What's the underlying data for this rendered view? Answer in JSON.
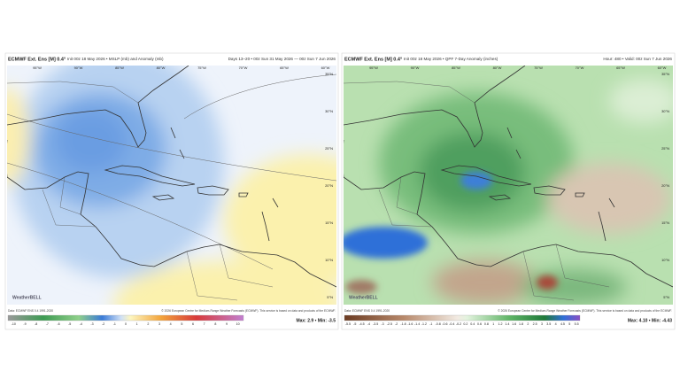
{
  "panels": [
    {
      "title": "ECMWF Ext. Ens [M] 0.4°",
      "subtitle": "Init 00z 18 May 2026 • MSLP (mb) and Anomaly (mb)",
      "valid": "Days 13–20 • 00z Sun 31 May 2026 — 00z Sun 7 Jun 2026",
      "lon_labels": [
        "95°W",
        "90°W",
        "85°W",
        "80°W",
        "75°W",
        "70°W",
        "65°W",
        "60°W"
      ],
      "lat_labels": [
        "35°N",
        "30°N",
        "25°N",
        "20°N",
        "15°N",
        "10°N",
        "5°N"
      ],
      "credit_left": "Data: ECMWF ENS 0.4 1991-2020",
      "credit_right": "© 2026 European Centre for Medium-Range Weather Forecasts (ECMWF). This service is based on data and products of the ECMWF.",
      "colorbar_labels": [
        "-10",
        "-9",
        "-8",
        "-7",
        "-6",
        "-5",
        "-4",
        "-3",
        "-2",
        "-1",
        "0",
        "1",
        "2",
        "3",
        "4",
        "5",
        "6",
        "7",
        "8",
        "9",
        "10"
      ],
      "max_min": "Max: 2.9 • Min: -3.5",
      "logo": "WeatherBELL"
    },
    {
      "title": "ECMWF Ext. Ens [M] 0.4°",
      "subtitle": "Init 00z 18 May 2026 • QPF 7-Day Anomaly (inches)",
      "valid": "Hour: 480 • Valid: 00z Sun 7 Jun 2026",
      "lon_labels": [
        "95°W",
        "90°W",
        "85°W",
        "80°W",
        "75°W",
        "70°W",
        "65°W",
        "60°W"
      ],
      "lat_labels": [
        "35°N",
        "30°N",
        "25°N",
        "20°N",
        "15°N",
        "10°N",
        "5°N"
      ],
      "credit_left": "Data: ECMWF ENS 0.4 1991-2020",
      "credit_right": "© 2026 European Centre for Medium-Range Weather Forecasts (ECMWF). This service is based on data and products of the ECMWF.",
      "colorbar_labels": [
        "-5.5",
        "-5",
        "-4.5",
        "-4",
        "-3.5",
        "-3",
        "-2.5",
        "-2",
        "-1.8",
        "-1.6",
        "-1.4",
        "-1.2",
        "-1",
        "-0.8",
        "-0.6",
        "-0.4",
        "-0.2",
        "0.2",
        "0.4",
        "0.6",
        "0.8",
        "1",
        "1.2",
        "1.4",
        "1.6",
        "1.8",
        "2",
        "2.5",
        "3",
        "3.5",
        "4",
        "4.5",
        "5",
        "5.5"
      ],
      "max_min": "Max: 4.10 • Min: -4.43",
      "logo": "WeatherBELL"
    }
  ]
}
